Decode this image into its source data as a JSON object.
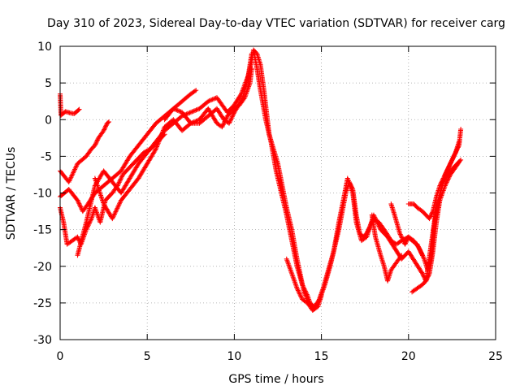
{
  "chart_data": {
    "type": "scatter",
    "title": "Day 310 of 2023, Sidereal Day-to-day VTEC variation (SDTVAR) for receiver carg",
    "xlabel": "GPS time / hours",
    "ylabel": "SDTVAR / TECUs",
    "xlim": [
      0,
      25
    ],
    "ylim": [
      -30,
      10
    ],
    "xticks": [
      0,
      5,
      10,
      15,
      20,
      25
    ],
    "yticks": [
      -30,
      -25,
      -20,
      -15,
      -10,
      -5,
      0,
      5,
      10
    ],
    "grid": true,
    "marker": "+",
    "color": "#ff0000",
    "series": [
      {
        "values": [
          [
            0.0,
            3.5
          ],
          [
            0.05,
            0.6
          ],
          [
            0.3,
            1.1
          ],
          [
            0.6,
            0.9
          ],
          [
            0.8,
            0.8
          ],
          [
            1.0,
            1.2
          ],
          [
            1.1,
            1.4
          ]
        ]
      },
      {
        "values": [
          [
            0.0,
            -7.0
          ],
          [
            0.5,
            -8.5
          ],
          [
            1.0,
            -6.0
          ],
          [
            1.5,
            -5.0
          ],
          [
            1.8,
            -4.0
          ],
          [
            2.0,
            -3.5
          ],
          [
            2.2,
            -2.5
          ],
          [
            2.5,
            -1.5
          ],
          [
            2.7,
            -0.5
          ],
          [
            2.8,
            -0.3
          ]
        ]
      },
      {
        "values": [
          [
            0.0,
            -12.0
          ],
          [
            0.2,
            -14.0
          ],
          [
            0.4,
            -17.0
          ],
          [
            0.7,
            -16.5
          ],
          [
            1.0,
            -16.0
          ],
          [
            1.2,
            -17.0
          ],
          [
            1.5,
            -15.0
          ],
          [
            1.8,
            -13.5
          ],
          [
            2.0,
            -12.0
          ],
          [
            2.3,
            -14.0
          ],
          [
            2.6,
            -11.0
          ],
          [
            3.0,
            -10.0
          ],
          [
            3.3,
            -9.0
          ],
          [
            3.6,
            -7.5
          ],
          [
            4.0,
            -6.5
          ],
          [
            4.4,
            -5.5
          ],
          [
            4.8,
            -4.5
          ],
          [
            5.2,
            -4.0
          ],
          [
            5.6,
            -3.0
          ],
          [
            6.0,
            -2.0
          ]
        ]
      },
      {
        "values": [
          [
            0.0,
            -10.5
          ],
          [
            0.5,
            -9.5
          ],
          [
            1.0,
            -11.0
          ],
          [
            1.3,
            -12.5
          ],
          [
            1.6,
            -11.5
          ],
          [
            2.0,
            -10.0
          ],
          [
            2.5,
            -9.0
          ],
          [
            3.0,
            -8.0
          ],
          [
            3.5,
            -7.0
          ],
          [
            4.0,
            -5.0
          ],
          [
            4.5,
            -3.5
          ],
          [
            5.0,
            -2.0
          ],
          [
            5.5,
            -0.5
          ],
          [
            6.0,
            0.5
          ],
          [
            6.5,
            1.5
          ],
          [
            7.0,
            2.5
          ],
          [
            7.5,
            3.5
          ],
          [
            7.8,
            4.0
          ]
        ]
      },
      {
        "values": [
          [
            1.0,
            -18.5
          ],
          [
            1.5,
            -14.0
          ],
          [
            2.0,
            -9.0
          ],
          [
            2.5,
            -7.0
          ],
          [
            3.0,
            -8.5
          ],
          [
            3.5,
            -10.0
          ],
          [
            4.0,
            -8.0
          ],
          [
            4.5,
            -6.0
          ],
          [
            5.0,
            -4.5
          ],
          [
            5.5,
            -3.0
          ],
          [
            6.0,
            -1.5
          ],
          [
            6.5,
            -0.5
          ],
          [
            7.0,
            0.5
          ],
          [
            7.5,
            1.0
          ],
          [
            8.0,
            1.5
          ],
          [
            8.5,
            2.5
          ],
          [
            9.0,
            3.0
          ],
          [
            9.3,
            2.0
          ],
          [
            9.6,
            1.0
          ],
          [
            10.0,
            2.0
          ],
          [
            10.4,
            3.5
          ],
          [
            10.8,
            6.0
          ],
          [
            11.0,
            9.0
          ]
        ]
      },
      {
        "values": [
          [
            2.0,
            -8.0
          ],
          [
            2.5,
            -11.5
          ],
          [
            3.0,
            -13.5
          ],
          [
            3.5,
            -11.0
          ],
          [
            4.0,
            -9.5
          ],
          [
            4.5,
            -8.0
          ],
          [
            5.0,
            -6.0
          ],
          [
            5.5,
            -4.0
          ],
          [
            6.0,
            -1.0
          ],
          [
            6.5,
            0.0
          ],
          [
            7.0,
            -1.5
          ],
          [
            7.5,
            -0.5
          ],
          [
            8.0,
            0.0
          ],
          [
            8.5,
            1.5
          ],
          [
            9.0,
            -0.5
          ],
          [
            9.3,
            -1.0
          ],
          [
            9.6,
            0.5
          ],
          [
            10.0,
            1.5
          ],
          [
            10.3,
            2.0
          ],
          [
            10.6,
            3.0
          ],
          [
            10.9,
            5.0
          ],
          [
            11.0,
            7.0
          ]
        ]
      },
      {
        "values": [
          [
            6.0,
            0.0
          ],
          [
            6.5,
            1.5
          ],
          [
            7.0,
            1.0
          ],
          [
            7.5,
            -0.5
          ],
          [
            8.0,
            -0.5
          ],
          [
            8.5,
            0.5
          ],
          [
            9.0,
            1.5
          ],
          [
            9.4,
            0.0
          ],
          [
            9.7,
            -0.5
          ],
          [
            10.0,
            1.0
          ],
          [
            10.5,
            3.0
          ],
          [
            11.0,
            8.0
          ],
          [
            11.1,
            9.5
          ],
          [
            11.3,
            9.0
          ],
          [
            11.5,
            7.5
          ],
          [
            11.7,
            4.0
          ],
          [
            12.0,
            -2.0
          ],
          [
            12.5,
            -6.0
          ],
          [
            13.0,
            -12.0
          ],
          [
            13.3,
            -15.0
          ],
          [
            13.6,
            -19.0
          ],
          [
            14.0,
            -23.5
          ],
          [
            14.3,
            -25.0
          ],
          [
            14.6,
            -25.5
          ],
          [
            14.9,
            -24.5
          ],
          [
            15.2,
            -22.5
          ],
          [
            15.5,
            -20.0
          ],
          [
            15.8,
            -17.0
          ],
          [
            16.0,
            -15.0
          ],
          [
            16.2,
            -12.5
          ],
          [
            16.4,
            -10.0
          ],
          [
            16.6,
            -8.5
          ],
          [
            16.8,
            -9.5
          ],
          [
            17.0,
            -13.0
          ],
          [
            17.2,
            -15.5
          ],
          [
            17.4,
            -16.0
          ],
          [
            17.6,
            -15.5
          ],
          [
            17.8,
            -14.5
          ],
          [
            18.0,
            -13.5
          ],
          [
            18.3,
            -14.0
          ],
          [
            18.6,
            -15.0
          ],
          [
            19.0,
            -16.5
          ],
          [
            19.3,
            -17.0
          ],
          [
            19.6,
            -16.5
          ],
          [
            20.0,
            -16.0
          ],
          [
            20.3,
            -16.5
          ],
          [
            20.6,
            -17.5
          ],
          [
            20.9,
            -19.0
          ],
          [
            21.1,
            -20.5
          ],
          [
            21.3,
            -19.0
          ],
          [
            21.5,
            -14.0
          ],
          [
            21.8,
            -10.0
          ],
          [
            22.1,
            -7.5
          ],
          [
            22.4,
            -6.0
          ],
          [
            22.7,
            -4.5
          ],
          [
            22.9,
            -3.0
          ]
        ]
      },
      {
        "values": [
          [
            11.1,
            9.5
          ],
          [
            11.3,
            7.0
          ],
          [
            11.5,
            4.0
          ],
          [
            11.8,
            0.0
          ],
          [
            12.1,
            -3.0
          ],
          [
            12.4,
            -7.0
          ],
          [
            12.7,
            -10.0
          ],
          [
            13.0,
            -13.0
          ],
          [
            13.3,
            -16.5
          ],
          [
            13.6,
            -20.0
          ],
          [
            13.9,
            -22.5
          ],
          [
            14.2,
            -24.0
          ],
          [
            14.5,
            -26.0
          ],
          [
            14.8,
            -25.0
          ],
          [
            15.1,
            -23.0
          ],
          [
            15.4,
            -20.5
          ],
          [
            15.7,
            -18.0
          ],
          [
            16.0,
            -14.0
          ],
          [
            16.3,
            -10.5
          ],
          [
            16.5,
            -8.0
          ],
          [
            16.8,
            -10.0
          ],
          [
            17.0,
            -14.0
          ],
          [
            17.3,
            -16.5
          ],
          [
            17.6,
            -16.0
          ],
          [
            18.0,
            -13.0
          ],
          [
            18.4,
            -15.0
          ],
          [
            18.8,
            -16.0
          ],
          [
            19.2,
            -17.5
          ],
          [
            19.6,
            -19.0
          ],
          [
            20.0,
            -18.0
          ],
          [
            20.4,
            -19.5
          ],
          [
            20.8,
            -21.0
          ],
          [
            21.0,
            -22.0
          ],
          [
            21.3,
            -17.0
          ],
          [
            21.6,
            -12.0
          ],
          [
            22.0,
            -8.5
          ],
          [
            22.4,
            -7.0
          ],
          [
            22.8,
            -6.0
          ],
          [
            23.0,
            -5.5
          ]
        ]
      },
      {
        "values": [
          [
            13.0,
            -19.0
          ],
          [
            13.3,
            -21.0
          ],
          [
            13.6,
            -23.0
          ],
          [
            13.9,
            -24.5
          ],
          [
            14.2,
            -25.0
          ],
          [
            14.5,
            -26.0
          ],
          [
            14.8,
            -25.5
          ],
          [
            15.0,
            -24.0
          ]
        ]
      },
      {
        "values": [
          [
            17.9,
            -13.0
          ],
          [
            18.1,
            -16.0
          ],
          [
            18.4,
            -18.5
          ],
          [
            18.6,
            -20.0
          ],
          [
            18.8,
            -22.0
          ],
          [
            19.0,
            -20.5
          ],
          [
            19.3,
            -19.5
          ],
          [
            19.6,
            -18.5
          ]
        ]
      },
      {
        "values": [
          [
            19.0,
            -11.5
          ],
          [
            19.2,
            -13.0
          ],
          [
            19.5,
            -15.5
          ],
          [
            19.8,
            -17.0
          ],
          [
            20.0,
            -16.0
          ],
          [
            20.2,
            -16.5
          ],
          [
            20.5,
            -17.0
          ],
          [
            20.8,
            -18.5
          ]
        ]
      },
      {
        "values": [
          [
            20.0,
            -11.5
          ],
          [
            20.3,
            -11.5
          ],
          [
            20.5,
            -12.0
          ],
          [
            20.8,
            -12.5
          ],
          [
            21.0,
            -13.0
          ],
          [
            21.2,
            -13.5
          ],
          [
            21.4,
            -12.5
          ],
          [
            21.6,
            -10.5
          ],
          [
            21.8,
            -9.0
          ],
          [
            22.0,
            -8.0
          ],
          [
            22.3,
            -6.5
          ],
          [
            22.6,
            -5.0
          ],
          [
            22.9,
            -3.5
          ],
          [
            23.0,
            -1.3
          ]
        ]
      },
      {
        "values": [
          [
            20.2,
            -23.5
          ],
          [
            20.5,
            -23.0
          ],
          [
            20.8,
            -22.5
          ],
          [
            21.0,
            -22.0
          ],
          [
            21.2,
            -21.0
          ],
          [
            21.4,
            -18.0
          ],
          [
            21.6,
            -14.0
          ],
          [
            21.8,
            -11.0
          ],
          [
            22.1,
            -9.0
          ],
          [
            22.4,
            -7.5
          ],
          [
            22.7,
            -6.5
          ],
          [
            22.9,
            -5.8
          ]
        ]
      }
    ]
  }
}
